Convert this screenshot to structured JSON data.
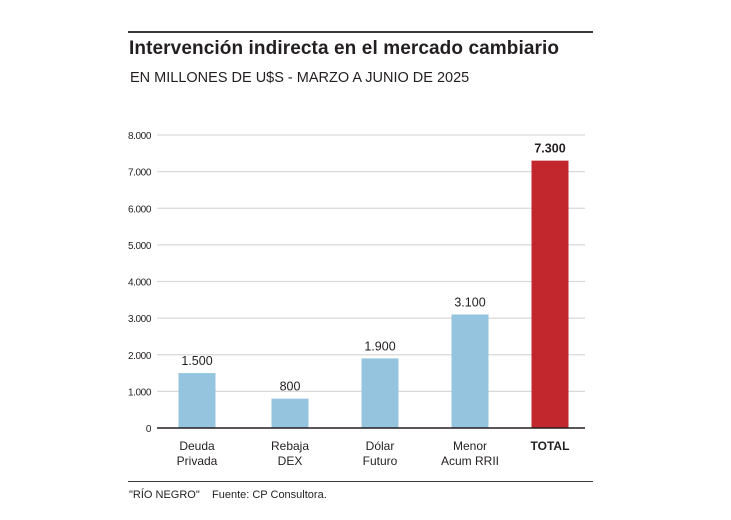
{
  "header": {
    "title": "Intervención indirecta en el mercado cambiario",
    "subtitle": "EN MILLONES DE U$S - MARZO A JUNIO DE 2025"
  },
  "footer": {
    "brand": "\"RÍO NEGRO\"",
    "source": "Fuente: CP Consultora."
  },
  "colors": {
    "bar": "#94c4de",
    "total_bar": "#c1272d",
    "gridline": "#d9d9d9",
    "axis": "#231f20",
    "text": "#231f20"
  },
  "chart_data": {
    "type": "bar",
    "title": "Intervención indirecta en el mercado cambiario",
    "subtitle": "EN MILLONES DE U$S - MARZO A JUNIO DE 2025",
    "xlabel": "",
    "ylabel": "",
    "ylim": [
      0,
      8000
    ],
    "yticks": [
      0,
      1000,
      2000,
      3000,
      4000,
      5000,
      6000,
      7000,
      8000
    ],
    "ytick_labels": [
      "0",
      "1.000",
      "2.000",
      "3.000",
      "4.000",
      "5.000",
      "6.000",
      "7.000",
      "8.000"
    ],
    "grid": true,
    "legend": "none",
    "categories": [
      [
        "Deuda",
        "Privada"
      ],
      [
        "Rebaja",
        "DEX"
      ],
      [
        "Dólar",
        "Futuro"
      ],
      [
        "Menor",
        "Acum RRII"
      ],
      [
        "TOTAL"
      ]
    ],
    "values": [
      1500,
      800,
      1900,
      3100,
      7300
    ],
    "value_labels": [
      "1.500",
      "800",
      "1.900",
      "3.100",
      "7.300"
    ],
    "highlight": [
      false,
      false,
      false,
      false,
      true
    ]
  }
}
